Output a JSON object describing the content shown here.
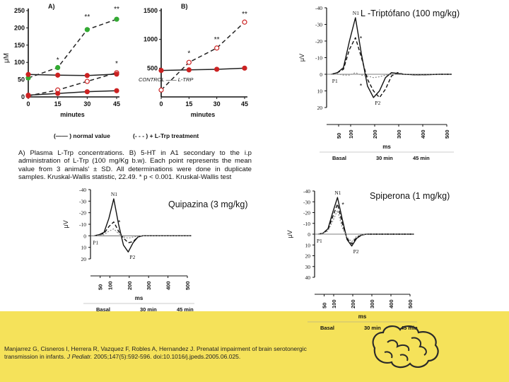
{
  "colors": {
    "footer_band": "#f5e25a",
    "normal_series": "#cc2222",
    "treatment_series": "#33aa33",
    "ink": "#111111"
  },
  "titles": {
    "trp_panel": "L -Triptófano (100 mg/kg)",
    "quipazina_panel": "Quipazina (3 mg/kg)",
    "spiperona_panel": "Spiperona (1 mg/kg)"
  },
  "caption": {
    "text": "A) Plasma L-Trp concentrations. B) 5-HT in A1 secondary to the i.p administration of L-Trp (100 mg/Kg b.w). Each point represents the mean value from 3 animals' ± SD. All determinations were done in duplicate samples. Kruskal-Wallis statistic, 22.49. * p < 0.001. Kruskal-Wallis test"
  },
  "citation": {
    "authors": "Manjarrez G, Cisneros I, Herrera R, Vazquez F, Robles A, Hernandez J. Prenatal impairment of brain serotonergic transmission in infants.",
    "journal": "J Pediatr.",
    "details": "2005;147(5):592-596. doi:10.1016/j.jpeds.2005.06.025."
  },
  "chart_data": [
    {
      "id": "A",
      "type": "line",
      "panel_label": "A)",
      "ylabel": "μM",
      "xlabel": "minutes",
      "x": [
        0,
        15,
        30,
        45
      ],
      "xticks": [
        "0",
        "15",
        "30",
        "45"
      ],
      "yticks": [
        "0",
        "50",
        "100",
        "150",
        "200",
        "250"
      ],
      "ylim": [
        0,
        250
      ],
      "series": [
        {
          "name": "L-Trp treatment green",
          "values": [
            55,
            85,
            195,
            225
          ]
        },
        {
          "name": "L-Trp treatment dashed",
          "values": [
            3,
            20,
            45,
            70
          ]
        },
        {
          "name": "normal value",
          "values": [
            65,
            63,
            62,
            66
          ]
        },
        {
          "name": "normal value baseline",
          "values": [
            5,
            10,
            15,
            18
          ]
        }
      ],
      "markers": [
        {
          "label": "*",
          "x": 15,
          "y": 100
        },
        {
          "label": "**",
          "x": 30,
          "y": 225
        },
        {
          "label": "**",
          "x": 45,
          "y": 248
        },
        {
          "label": "*",
          "x": 45,
          "y": 90
        }
      ],
      "legend": {
        "normal_label": "normal value",
        "treatment_label": "L-Trp treatment"
      }
    },
    {
      "id": "B",
      "type": "line",
      "panel_label": "B)",
      "xlabel": "minutes",
      "x": [
        0,
        15,
        30,
        45
      ],
      "xticks": [
        "0",
        "15",
        "30",
        "45"
      ],
      "yticks": [
        "500",
        "1000",
        "1500"
      ],
      "ylim": [
        0,
        1500
      ],
      "series": [
        {
          "name": "L-Trp treatment",
          "values": [
            120,
            600,
            850,
            1300
          ]
        },
        {
          "name": "normal value",
          "values": [
            460,
            470,
            480,
            500
          ]
        }
      ],
      "markers": [
        {
          "label": "*",
          "x": 15,
          "y": 720
        },
        {
          "label": "**",
          "x": 30,
          "y": 960
        },
        {
          "label": "**",
          "x": 45,
          "y": 1400
        }
      ],
      "legend_text": "CONTROL —— L-TRP"
    },
    {
      "id": "trp-erp",
      "type": "line",
      "title": "L -Triptófano (100 mg/kg)",
      "ylabel": "μV",
      "xlabel": "ms",
      "x": [
        0,
        25,
        50,
        75,
        100,
        125,
        150,
        175,
        200,
        225,
        250,
        275,
        300,
        350,
        400,
        450,
        500
      ],
      "xticks": [
        "50",
        "100",
        "200",
        "300",
        "400",
        "500"
      ],
      "yticks": [
        "-40",
        "-30",
        "-20",
        "-10",
        "0",
        "10",
        "20"
      ],
      "ylim": [
        -40,
        20
      ],
      "series": [
        {
          "name": "Basal",
          "values": [
            0,
            -1,
            -4,
            -20,
            -34,
            -12,
            7,
            14,
            10,
            2,
            -1,
            -0.5,
            0,
            0.3,
            0.2,
            0,
            0
          ]
        },
        {
          "name": "30 min",
          "values": [
            0,
            -1,
            -3,
            -15,
            -22,
            -10,
            3,
            10,
            14,
            9,
            1,
            -1,
            0,
            0.3,
            0.2,
            0,
            0
          ]
        },
        {
          "name": "45 min",
          "values": [
            0,
            -0.2,
            0.5,
            0.5,
            -1,
            0.5,
            1,
            2,
            1.5,
            0.5,
            0,
            0,
            0,
            0,
            0,
            0,
            0
          ]
        }
      ],
      "peak_labels": [
        "N1",
        "P1",
        "P2"
      ],
      "markers": [
        "*",
        "*"
      ],
      "legend": [
        "Basal",
        "30 min",
        "45 min"
      ]
    },
    {
      "id": "quipazina-erp",
      "type": "line",
      "title": "Quipazina (3 mg/kg)",
      "ylabel": "μV",
      "xlabel": "ms",
      "x": [
        0,
        25,
        50,
        75,
        100,
        125,
        150,
        175,
        200,
        225,
        250,
        275,
        300,
        350,
        400,
        450,
        500
      ],
      "xticks": [
        "50",
        "100",
        "200",
        "300",
        "400",
        "500"
      ],
      "yticks": [
        "-40",
        "-30",
        "-20",
        "-10",
        "0",
        "10",
        "20"
      ],
      "ylim": [
        -40,
        20
      ],
      "series": [
        {
          "name": "Basal",
          "values": [
            0,
            -1,
            -3,
            -15,
            -32,
            -10,
            8,
            14,
            6,
            1,
            0,
            0,
            0,
            0,
            0,
            0,
            0
          ]
        },
        {
          "name": "30 min",
          "values": [
            0,
            -1,
            -2,
            -8,
            -12,
            -4,
            2,
            6,
            5,
            1,
            0,
            0,
            0,
            0,
            0,
            0,
            0
          ]
        },
        {
          "name": "45 min",
          "values": [
            0,
            -0.5,
            -1,
            -4,
            -6,
            -2,
            1,
            2,
            1,
            0.5,
            0,
            0,
            0,
            0,
            0,
            0,
            0
          ]
        }
      ],
      "peak_labels": [
        "N1",
        "P1",
        "P2"
      ],
      "markers": [
        "*"
      ],
      "legend": [
        "Basal",
        "30 min",
        "45 min"
      ]
    },
    {
      "id": "spiperona-erp",
      "type": "line",
      "title": "Spiperona (1 mg/kg)",
      "ylabel": "μV",
      "xlabel": "ms",
      "x": [
        0,
        25,
        50,
        75,
        100,
        125,
        150,
        175,
        200,
        225,
        250,
        275,
        300,
        350,
        400,
        450,
        500
      ],
      "xticks": [
        "50",
        "100",
        "200",
        "300",
        "400",
        "500"
      ],
      "yticks": [
        "-40",
        "-30",
        "-20",
        "-10",
        "0",
        "10",
        "20",
        "30",
        "40"
      ],
      "ylim": [
        -40,
        40
      ],
      "series": [
        {
          "name": "Basal",
          "values": [
            0,
            -1,
            -5,
            -20,
            -34,
            -14,
            5,
            11,
            4,
            1,
            0,
            0,
            0,
            0,
            0,
            0,
            0
          ]
        },
        {
          "name": "30 min",
          "values": [
            0,
            -1,
            -4,
            -16,
            -28,
            -10,
            4,
            9,
            3,
            1,
            0,
            0,
            0,
            0,
            0,
            0,
            0
          ]
        },
        {
          "name": "45 min",
          "values": [
            0,
            -1,
            -3,
            -12,
            -22,
            -6,
            3,
            7,
            2,
            0.5,
            0,
            0,
            0,
            0,
            0,
            0,
            0
          ]
        }
      ],
      "peak_labels": [
        "N1",
        "P1",
        "P2"
      ],
      "markers": [
        "*"
      ],
      "legend": [
        "Basal",
        "30 min",
        "45 min"
      ]
    }
  ]
}
